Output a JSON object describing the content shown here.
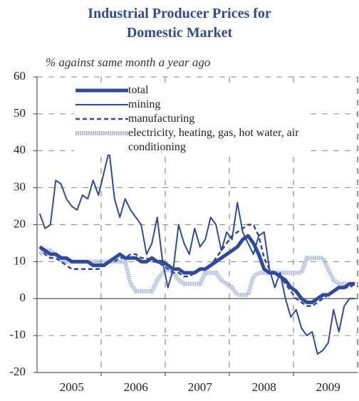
{
  "chart_data": {
    "type": "line",
    "title": "Industrial Producer Prices for Domestic Market",
    "subtitle": "% against same month a year ago",
    "categories": [
      null,
      null,
      null,
      null,
      null,
      null,
      "2005",
      null,
      null,
      null,
      null,
      null,
      null,
      null,
      null,
      null,
      null,
      null,
      "2006",
      null,
      null,
      null,
      null,
      null,
      null,
      null,
      null,
      null,
      null,
      null,
      "2007",
      null,
      null,
      null,
      null,
      null,
      null,
      null,
      null,
      null,
      null,
      null,
      "2008",
      null,
      null,
      null,
      null,
      null,
      null,
      null,
      null,
      null,
      null,
      null,
      "2009",
      null,
      null,
      null,
      null,
      null
    ],
    "series": [
      {
        "name": "total",
        "color": "#2e4a9e",
        "style": "thick",
        "values": [
          14,
          13,
          12,
          12,
          11,
          11,
          10,
          10,
          10,
          10,
          9,
          9,
          9,
          10,
          11,
          12,
          11,
          11,
          11,
          10,
          10,
          11,
          10,
          10,
          9,
          8,
          8,
          7,
          7,
          7,
          8,
          8,
          9,
          10,
          11,
          12,
          13,
          14,
          16,
          17,
          15,
          12,
          8,
          7,
          7,
          6,
          5,
          3,
          2,
          0,
          -1,
          -1,
          0,
          1,
          1,
          2,
          3,
          3,
          4,
          4
        ]
      },
      {
        "name": "mining",
        "color": "#2e4a9e",
        "style": "solid",
        "values": [
          23,
          19,
          20,
          32,
          31,
          27,
          25,
          24,
          28,
          27,
          32,
          28,
          34,
          40,
          27,
          22,
          27,
          24,
          22,
          20,
          12,
          15,
          22,
          10,
          3,
          8,
          20,
          15,
          12,
          19,
          14,
          16,
          22,
          20,
          13,
          18,
          16,
          26,
          18,
          15,
          12,
          17,
          18,
          8,
          3,
          7,
          0,
          -5,
          -3,
          -8,
          -10,
          -9,
          -15,
          -14,
          -12,
          -3,
          -9,
          -2,
          0,
          0
        ]
      },
      {
        "name": "manufacturing",
        "color": "#2e4a9e",
        "style": "dashed",
        "values": [
          14,
          12,
          11,
          11,
          10,
          9,
          8,
          8,
          8,
          8,
          8,
          8,
          9,
          10,
          10,
          11,
          11,
          12,
          12,
          11,
          11,
          10,
          10,
          9,
          8,
          7,
          7,
          6,
          6,
          7,
          8,
          8,
          9,
          11,
          13,
          15,
          17,
          18,
          19,
          20,
          20,
          17,
          11,
          8,
          7,
          6,
          4,
          2,
          0,
          -1,
          -2,
          -2,
          -1,
          0,
          1,
          2,
          3,
          3,
          3,
          4
        ]
      },
      {
        "name": "electricity, heating, gas, hot water, air conditioning",
        "color": "#aebbdc",
        "style": "hatched",
        "values": [
          12,
          13,
          13,
          12,
          11,
          10,
          10,
          10,
          10,
          10,
          10,
          10,
          10,
          10,
          10,
          10,
          10,
          4,
          2,
          2,
          2,
          2,
          5,
          7,
          8,
          7,
          5,
          4,
          4,
          4,
          4,
          7,
          7,
          7,
          5,
          4,
          3,
          1,
          1,
          1,
          6,
          7,
          7,
          7,
          7,
          7,
          7,
          7,
          7,
          7,
          11,
          11,
          11,
          11,
          8,
          5,
          4,
          4,
          4,
          4
        ]
      }
    ],
    "ylim": [
      -20,
      60
    ],
    "yticks": [
      -20,
      -10,
      0,
      10,
      20,
      30,
      40,
      50,
      60
    ],
    "grid": true
  }
}
